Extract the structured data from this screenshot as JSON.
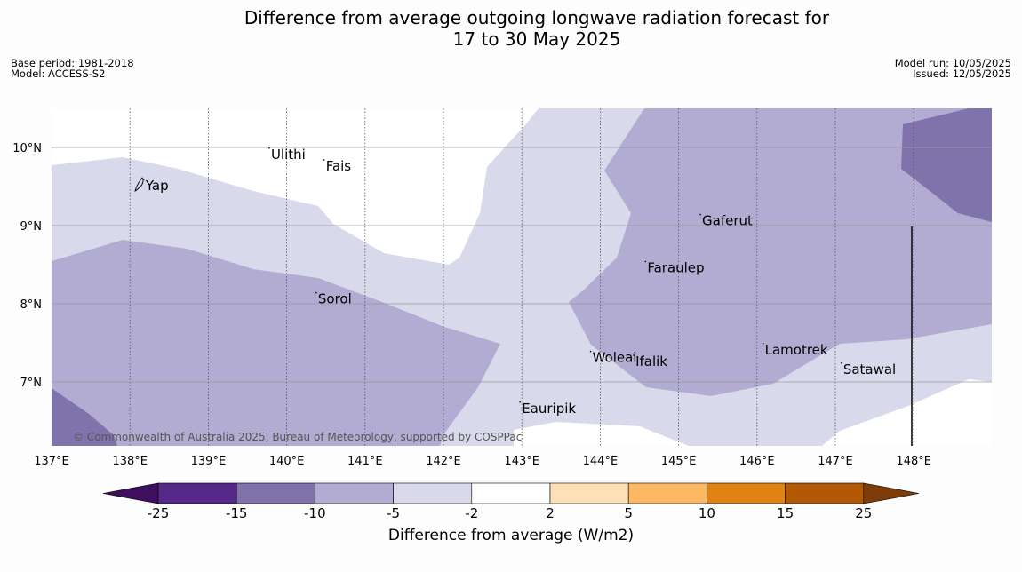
{
  "title": {
    "line1": "Difference from average outgoing longwave radiation forecast for",
    "line2": "17 to 30 May 2025"
  },
  "meta": {
    "base_period": "Base period: 1981-2018",
    "model": "Model: ACCESS-S2",
    "model_run": "Model run: 10/05/2025",
    "issued": "Issued: 12/05/2025"
  },
  "map": {
    "lon_range": [
      137,
      149
    ],
    "lat_range": [
      6.2,
      10.5
    ],
    "lon_ticks": [
      "137°E",
      "138°E",
      "139°E",
      "140°E",
      "141°E",
      "142°E",
      "143°E",
      "144°E",
      "145°E",
      "146°E",
      "147°E",
      "148°E"
    ],
    "lat_ticks": [
      "10°N",
      "9°N",
      "8°N",
      "7°N"
    ],
    "places": [
      {
        "name": "Ulithi",
        "lon": 139.8,
        "lat": 9.9
      },
      {
        "name": "Fais",
        "lon": 140.5,
        "lat": 9.75
      },
      {
        "name": "Yap",
        "lon": 138.2,
        "lat": 9.5
      },
      {
        "name": "Gaferut",
        "lon": 145.3,
        "lat": 9.05
      },
      {
        "name": "Faraulep",
        "lon": 144.6,
        "lat": 8.45
      },
      {
        "name": "Sorol",
        "lon": 140.4,
        "lat": 8.05
      },
      {
        "name": "Lamotrek",
        "lon": 146.1,
        "lat": 7.4
      },
      {
        "name": "Woleai",
        "lon": 143.9,
        "lat": 7.3
      },
      {
        "name": "Ifalik",
        "lon": 144.45,
        "lat": 7.25
      },
      {
        "name": "Satawal",
        "lon": 147.1,
        "lat": 7.15
      },
      {
        "name": "Eauripik",
        "lon": 143.0,
        "lat": 6.65
      }
    ],
    "copyright": "© Commonwealth of Australia 2025, Bureau of Meteorology, supported by COSPPac"
  },
  "colorbar": {
    "label": "Difference from average (W/m2)",
    "ticks": [
      "-25",
      "-15",
      "-10",
      "-5",
      "-2",
      "2",
      "5",
      "10",
      "15",
      "25"
    ],
    "colors": [
      "#3f0f5f",
      "#542788",
      "#8073ac",
      "#b2abd2",
      "#d8daeb",
      "#ffffff",
      "#fee0b6",
      "#fdb863",
      "#e08214",
      "#b35806",
      "#7f3b08"
    ]
  }
}
